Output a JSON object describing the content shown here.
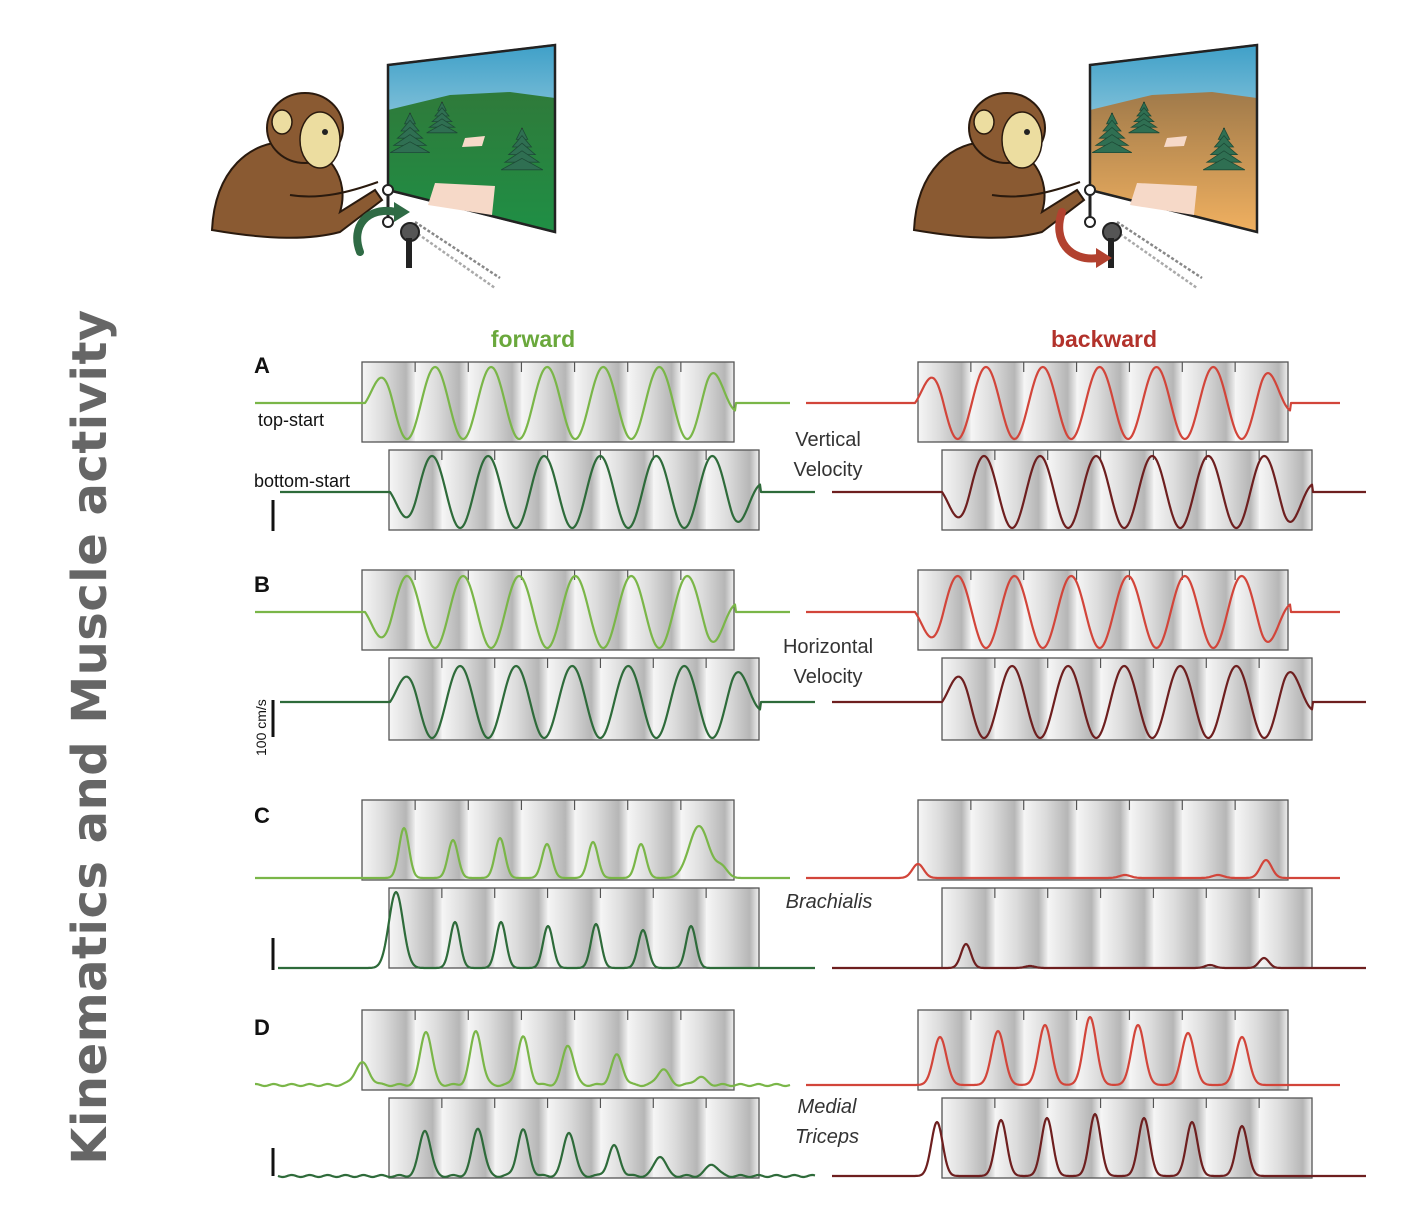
{
  "figure": {
    "side_title": "Kinematics and Muscle  activity",
    "conditions": {
      "forward": "forward",
      "backward": "backward"
    },
    "labels": {
      "A": "A",
      "B": "B",
      "C": "C",
      "D": "D",
      "top_start": "top-start",
      "bottom_start": "bottom-start",
      "vertical_velocity": [
        "Vertical",
        "Velocity"
      ],
      "horizontal_velocity": [
        "Horizontal",
        "Velocity"
      ],
      "brachialis": "Brachialis",
      "medial_triceps": [
        "Medial",
        "Triceps"
      ],
      "scale_bar": "100 cm/s"
    },
    "colors": {
      "forward_top": "#7ab648",
      "forward_bottom": "#2e6b3a",
      "backward_top": "#d2453a",
      "backward_bottom": "#6e1f1f",
      "title_green": "#6aa83c",
      "title_red": "#b2322b",
      "side_title": "#666666"
    },
    "illustrations": [
      {
        "scene": "green-forest",
        "arrow": "forward-cycling-arrow"
      },
      {
        "scene": "desert",
        "arrow": "backward-cycling-arrow"
      }
    ]
  }
}
